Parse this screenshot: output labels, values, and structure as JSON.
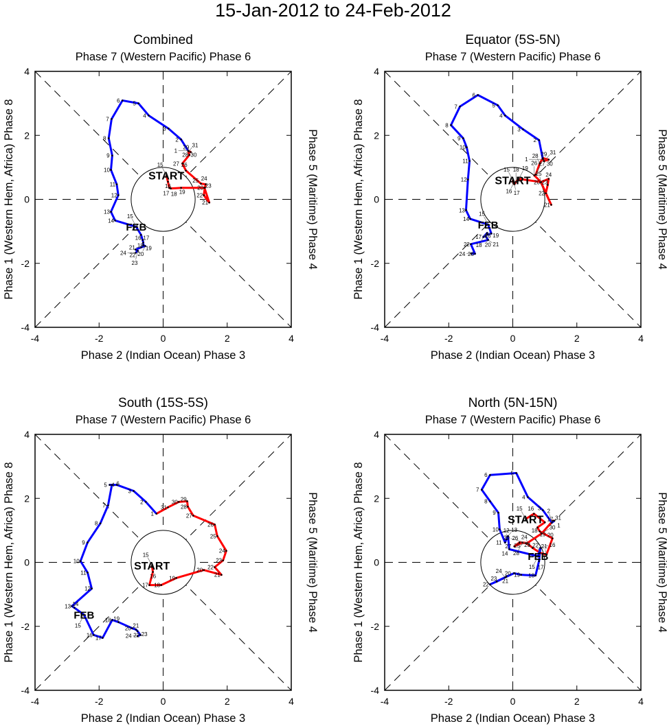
{
  "chart_data": {
    "type": "line",
    "title": "15-Jan-2012 to 24-Feb-2012",
    "xlim": [
      -4,
      4
    ],
    "ylim": [
      -4,
      4
    ],
    "ticks": [
      -4,
      -2,
      0,
      2,
      4
    ],
    "colors": {
      "jan": "#ff0000",
      "feb": "#0000ff",
      "axes": "#000000"
    },
    "start_label": "START",
    "feb_label": "FEB",
    "axis_labels": {
      "top": "Phase 7 (Western Pacific) Phase 6",
      "bottom": "Phase 2 (Indian Ocean) Phase 3",
      "left": "Phase 1 (Western Hem, Africa) Phase 8",
      "right": "Phase 5 (Maritime) Phase 4"
    },
    "panels": [
      {
        "title": "Combined",
        "jan": [
          [
            15,
            0.1,
            0.75
          ],
          [
            16,
            0.15,
            0.55
          ],
          [
            17,
            0.19,
            0.36
          ],
          [
            18,
            0.24,
            0.34
          ],
          [
            19,
            0.56,
            0.36
          ],
          [
            20,
            1.29,
            0.36
          ],
          [
            21,
            1.44,
            -0.1
          ],
          [
            22,
            1.27,
            0.13
          ],
          [
            23,
            1.3,
            0.36
          ],
          [
            24,
            1.33,
            0.47
          ],
          [
            25,
            1.18,
            0.49
          ],
          [
            26,
            0.71,
            0.9
          ],
          [
            27,
            0.6,
            1.12
          ],
          [
            28,
            0.82,
            1.39
          ],
          [
            29,
            0.78,
            1.52
          ],
          [
            30,
            0.86,
            1.48
          ],
          [
            31,
            0.8,
            1.5
          ]
        ],
        "feb": [
          [
            1,
            0.78,
            1.52
          ],
          [
            2,
            0.56,
            1.87
          ],
          [
            3,
            0.17,
            2.21
          ],
          [
            4,
            -0.45,
            2.62
          ],
          [
            5,
            -0.77,
            3.0
          ],
          [
            6,
            -1.27,
            3.09
          ],
          [
            7,
            -1.61,
            2.51
          ],
          [
            8,
            -1.7,
            1.91
          ],
          [
            9,
            -1.59,
            1.37
          ],
          [
            10,
            -1.63,
            0.92
          ],
          [
            11,
            -1.45,
            0.47
          ],
          [
            12,
            -1.4,
            0.13
          ],
          [
            13,
            -1.63,
            -0.39
          ],
          [
            14,
            -1.5,
            -0.66
          ],
          [
            15,
            -0.84,
            -0.86
          ],
          [
            16,
            -0.69,
            -1.11
          ],
          [
            17,
            -0.64,
            -1.27
          ],
          [
            18,
            -0.62,
            -1.35
          ],
          [
            19,
            -0.62,
            -1.43
          ],
          [
            20,
            -0.56,
            -1.46
          ],
          [
            21,
            -0.69,
            -1.5
          ],
          [
            22,
            -0.86,
            -1.57
          ],
          [
            23,
            -0.79,
            -1.61
          ],
          [
            24,
            -0.86,
            -1.67
          ]
        ]
      },
      {
        "title": "Equator (5S-5N)",
        "jan": [
          [
            15,
            0.0,
            0.6
          ],
          [
            16,
            0.02,
            0.5
          ],
          [
            17,
            0.05,
            0.47
          ],
          [
            18,
            0.1,
            0.55
          ],
          [
            19,
            0.19,
            0.64
          ],
          [
            20,
            0.88,
            0.54
          ],
          [
            21,
            1.2,
            -0.17
          ],
          [
            22,
            1.03,
            0.19
          ],
          [
            23,
            1.09,
            0.45
          ],
          [
            24,
            1.12,
            0.64
          ],
          [
            25,
            0.88,
            0.54
          ],
          [
            26,
            0.67,
            0.75
          ],
          [
            27,
            0.72,
            0.78
          ],
          [
            28,
            0.84,
            1.12
          ],
          [
            29,
            0.94,
            1.29
          ],
          [
            30,
            1.12,
            1.24
          ],
          [
            31,
            0.98,
            1.2
          ]
        ],
        "feb": [
          [
            1,
            0.94,
            1.25
          ],
          [
            2,
            0.82,
            1.85
          ],
          [
            3,
            0.32,
            2.19
          ],
          [
            4,
            -0.24,
            2.62
          ],
          [
            5,
            -0.47,
            2.94
          ],
          [
            6,
            -1.09,
            3.26
          ],
          [
            7,
            -1.65,
            2.9
          ],
          [
            8,
            -1.93,
            2.32
          ],
          [
            9,
            -1.55,
            1.91
          ],
          [
            10,
            -1.44,
            1.63
          ],
          [
            11,
            -1.35,
            1.2
          ],
          [
            12,
            -1.4,
            0.62
          ],
          [
            13,
            -1.46,
            -0.34
          ],
          [
            14,
            -1.33,
            -0.61
          ],
          [
            15,
            -0.77,
            -0.79
          ],
          [
            16,
            -0.67,
            -1.07
          ],
          [
            17,
            -0.8,
            -1.1
          ],
          [
            18,
            -0.92,
            -1.18
          ],
          [
            19,
            -0.8,
            -1.05
          ],
          [
            20,
            -0.85,
            -1.15
          ],
          [
            21,
            -0.77,
            -1.27
          ],
          [
            22,
            -1.31,
            -1.4
          ],
          [
            23,
            -1.18,
            -1.7
          ],
          [
            24,
            -1.3,
            -1.7
          ]
        ]
      },
      {
        "title": "South (15S-5S)",
        "jan": [
          [
            15,
            -0.35,
            -0.1
          ],
          [
            16,
            -0.32,
            -0.3
          ],
          [
            17,
            -0.43,
            -0.71
          ],
          [
            18,
            -0.06,
            -0.71
          ],
          [
            19,
            0.41,
            -0.49
          ],
          [
            20,
            1.27,
            -0.24
          ],
          [
            21,
            1.82,
            -0.39
          ],
          [
            22,
            1.61,
            -0.15
          ],
          [
            23,
            1.87,
            0.06
          ],
          [
            24,
            1.97,
            0.36
          ],
          [
            25,
            1.69,
            0.82
          ],
          [
            26,
            1.61,
            1.18
          ],
          [
            27,
            0.94,
            1.46
          ],
          [
            28,
            0.77,
            1.74
          ],
          [
            29,
            0.75,
            1.91
          ],
          [
            30,
            0.49,
            1.89
          ],
          [
            31,
            0.15,
            1.72
          ]
        ],
        "feb": [
          [
            1,
            -0.21,
            1.52
          ],
          [
            2,
            -0.54,
            1.89
          ],
          [
            3,
            -0.92,
            2.23
          ],
          [
            4,
            -1.44,
            2.42
          ],
          [
            5,
            -1.67,
            2.42
          ],
          [
            6,
            -1.6,
            2.42
          ],
          [
            7,
            -1.72,
            1.78
          ],
          [
            8,
            -1.96,
            1.22
          ],
          [
            9,
            -2.36,
            0.62
          ],
          [
            10,
            -2.58,
            0.04
          ],
          [
            11,
            -2.36,
            -0.32
          ],
          [
            12,
            -2.23,
            -0.82
          ],
          [
            13,
            -2.85,
            -1.37
          ],
          [
            14,
            -2.77,
            -1.42
          ],
          [
            15,
            -2.47,
            -1.64
          ],
          [
            16,
            -2.17,
            -2.27
          ],
          [
            17,
            -1.89,
            -2.36
          ],
          [
            18,
            -1.59,
            -1.8
          ],
          [
            19,
            -1.39,
            -1.87
          ],
          [
            20,
            -0.97,
            -2.06
          ],
          [
            21,
            -0.85,
            -2.1
          ],
          [
            22,
            -0.8,
            -2.15
          ],
          [
            23,
            -0.71,
            -2.27
          ],
          [
            24,
            -0.8,
            -2.3
          ]
        ]
      },
      {
        "title": "North (5N-15N)",
        "jan": [
          [
            15,
            0.4,
            1.35
          ],
          [
            16,
            0.66,
            1.52
          ],
          [
            17,
            1.0,
            1.25
          ],
          [
            18,
            0.77,
            1.09
          ],
          [
            19,
            0.84,
            0.97
          ],
          [
            20,
            1.24,
            0.75
          ],
          [
            21,
            1.05,
            0.24
          ],
          [
            22,
            0.85,
            0.3
          ],
          [
            23,
            0.62,
            0.45
          ],
          [
            24,
            0.5,
            0.55
          ],
          [
            25,
            0.4,
            0.6
          ],
          [
            26,
            0.21,
            0.62
          ],
          [
            27,
            0.05,
            0.5
          ],
          [
            28,
            0.3,
            0.62
          ],
          [
            29,
            0.45,
            0.6
          ],
          [
            30,
            0.9,
            0.9
          ],
          [
            31,
            1.25,
            1.3
          ]
        ],
        "feb": [
          [
            1,
            1.3,
            1.3
          ],
          [
            2,
            1.22,
            1.24
          ],
          [
            3,
            0.94,
            1.63
          ],
          [
            4,
            0.47,
            2.04
          ],
          [
            5,
            0.11,
            2.79
          ],
          [
            6,
            -0.71,
            2.73
          ],
          [
            7,
            -0.97,
            2.27
          ],
          [
            8,
            -0.71,
            1.91
          ],
          [
            9,
            -0.45,
            1.55
          ],
          [
            10,
            -0.41,
            1.03
          ],
          [
            11,
            -0.24,
            0.62
          ],
          [
            12,
            -0.2,
            0.72
          ],
          [
            13,
            -0.15,
            0.82
          ],
          [
            14,
            -0.11,
            0.41
          ],
          [
            15,
            0.79,
            0.19
          ],
          [
            16,
            0.86,
            0.45
          ],
          [
            17,
            0.82,
            0.04
          ],
          [
            18,
            0.71,
            -0.41
          ],
          [
            19,
            0.26,
            -0.39
          ],
          [
            20,
            0.04,
            -0.34
          ],
          [
            21,
            -0.2,
            -0.45
          ],
          [
            22,
            -0.71,
            -0.69
          ],
          [
            23,
            -0.5,
            -0.6
          ],
          [
            24,
            -0.24,
            -0.47
          ]
        ]
      }
    ]
  }
}
